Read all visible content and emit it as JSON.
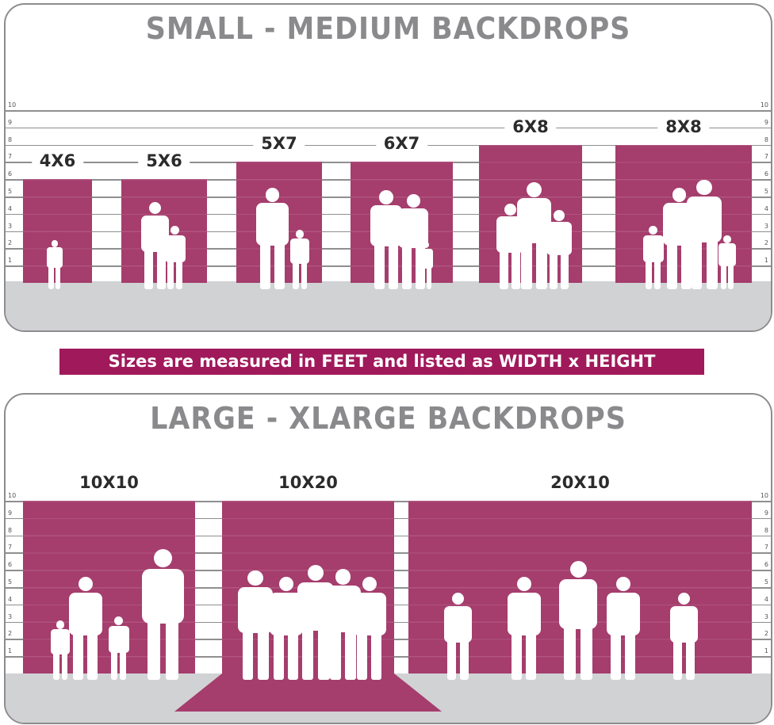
{
  "top_panel": {
    "title": "SMALL - MEDIUM BACKDROPS",
    "scale_ticks": [
      "1",
      "2",
      "3",
      "4",
      "5",
      "6",
      "7",
      "8",
      "9",
      "10"
    ],
    "backdrops": [
      {
        "label": "4X6",
        "width_ft": 4,
        "height_ft": 6
      },
      {
        "label": "5X6",
        "width_ft": 5,
        "height_ft": 6
      },
      {
        "label": "5X7",
        "width_ft": 5,
        "height_ft": 7
      },
      {
        "label": "6X7",
        "width_ft": 6,
        "height_ft": 7
      },
      {
        "label": "6X8",
        "width_ft": 6,
        "height_ft": 8
      },
      {
        "label": "8X8",
        "width_ft": 8,
        "height_ft": 8
      }
    ]
  },
  "banner": {
    "text": "Sizes are measured in FEET and listed as WIDTH x HEIGHT"
  },
  "bottom_panel": {
    "title": "LARGE - XLARGE BACKDROPS",
    "scale_ticks": [
      "1",
      "2",
      "3",
      "4",
      "5",
      "6",
      "7",
      "8",
      "9",
      "10"
    ],
    "backdrops": [
      {
        "label": "10X10",
        "width_ft": 10,
        "height_ft": 10
      },
      {
        "label": "10X20",
        "width_ft": 10,
        "height_ft": 20,
        "floor_extension": true
      },
      {
        "label": "20X10",
        "width_ft": 20,
        "height_ft": 10
      }
    ]
  },
  "colors": {
    "backdrop": "#a53d6d",
    "banner": "#a0195b",
    "title": "#8a8a8d",
    "floor": "#d1d2d4"
  }
}
